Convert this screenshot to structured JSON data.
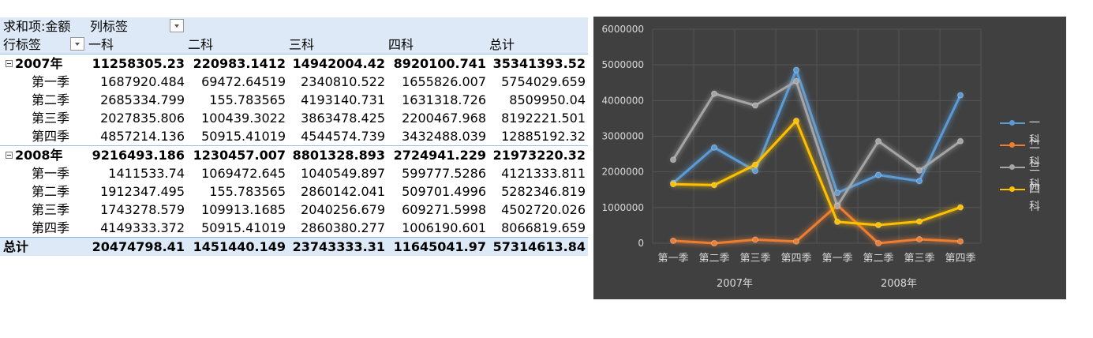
{
  "pivot": {
    "value_label": "求和项:金额",
    "col_label": "列标签",
    "row_label": "行标签",
    "col_headers": [
      "一科",
      "二科",
      "三科",
      "四科",
      "总计"
    ],
    "groups": [
      {
        "label": "2007年",
        "values": [
          "11258305.23",
          "220983.1412",
          "14942004.42",
          "8920100.741",
          "35341393.52"
        ],
        "rows": [
          {
            "label": "第一季",
            "values": [
              "1687920.484",
              "69472.64519",
              "2340810.522",
              "1655826.007",
              "5754029.659"
            ]
          },
          {
            "label": "第二季",
            "values": [
              "2685334.799",
              "155.783565",
              "4193140.731",
              "1631318.726",
              "8509950.04"
            ]
          },
          {
            "label": "第三季",
            "values": [
              "2027835.806",
              "100439.3022",
              "3863478.425",
              "2200467.968",
              "8192221.501"
            ]
          },
          {
            "label": "第四季",
            "values": [
              "4857214.136",
              "50915.41019",
              "4544574.739",
              "3432488.039",
              "12885192.32"
            ]
          }
        ]
      },
      {
        "label": "2008年",
        "values": [
          "9216493.186",
          "1230457.007",
          "8801328.893",
          "2724941.229",
          "21973220.32"
        ],
        "rows": [
          {
            "label": "第一季",
            "values": [
              "1411533.74",
              "1069472.645",
              "1040549.897",
              "599777.5286",
              "4121333.811"
            ]
          },
          {
            "label": "第二季",
            "values": [
              "1912347.495",
              "155.783565",
              "2860142.041",
              "509701.4996",
              "5282346.819"
            ]
          },
          {
            "label": "第三季",
            "values": [
              "1743278.579",
              "109913.1685",
              "2040256.679",
              "609271.5998",
              "4502720.026"
            ]
          },
          {
            "label": "第四季",
            "values": [
              "4149333.372",
              "50915.41019",
              "2860380.277",
              "1006190.601",
              "8066819.659"
            ]
          }
        ]
      }
    ],
    "total": {
      "label": "总计",
      "values": [
        "20474798.41",
        "1451440.149",
        "23743333.31",
        "11645041.97",
        "57314613.84"
      ]
    }
  },
  "chart_data": {
    "type": "line",
    "categories": [
      "第一季",
      "第二季",
      "第三季",
      "第四季",
      "第一季",
      "第二季",
      "第三季",
      "第四季"
    ],
    "groups": [
      {
        "label": "2007年",
        "span": [
          0,
          3
        ]
      },
      {
        "label": "2008年",
        "span": [
          4,
          7
        ]
      }
    ],
    "series": [
      {
        "name": "一科",
        "color": "#5b9bd5",
        "values": [
          1687920.484,
          2685334.799,
          2027835.806,
          4857214.136,
          1411533.74,
          1912347.495,
          1743278.579,
          4149333.372
        ]
      },
      {
        "name": "二科",
        "color": "#ed7d31",
        "values": [
          69472.64519,
          155.783565,
          100439.3022,
          50915.41019,
          1069472.645,
          155.783565,
          109913.1685,
          50915.41019
        ]
      },
      {
        "name": "三科",
        "color": "#a5a5a5",
        "values": [
          2340810.522,
          4193140.731,
          3863478.425,
          4544574.739,
          1040549.897,
          2860142.041,
          2040256.679,
          2860380.277
        ]
      },
      {
        "name": "四科",
        "color": "#ffc000",
        "values": [
          1655826.007,
          1631318.726,
          2200467.968,
          3432488.039,
          599777.5286,
          509701.4996,
          609271.5998,
          1006190.601
        ]
      }
    ],
    "yticks": [
      "0",
      "1000000",
      "2000000",
      "3000000",
      "4000000",
      "5000000",
      "6000000"
    ],
    "ylim": [
      0,
      6000000
    ],
    "grid": true,
    "legend": "right",
    "background": "#404040"
  }
}
